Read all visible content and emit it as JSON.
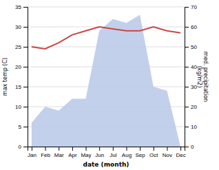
{
  "chart_data": {
    "type": "line",
    "categories": [
      "Jan",
      "Feb",
      "Mar",
      "Apr",
      "May",
      "Jun",
      "Jul",
      "Aug",
      "Sep",
      "Oct",
      "Nov",
      "Dec"
    ],
    "series": [
      {
        "type": "area",
        "color": "#b8c8e8",
        "values": [
          6,
          10,
          9,
          12,
          12,
          29,
          32,
          31,
          33,
          15,
          14,
          0
        ]
      },
      {
        "type": "line",
        "color": "#cc4444",
        "values": [
          25,
          24.5,
          26,
          28,
          29,
          30,
          29.5,
          29,
          29,
          30,
          29,
          28.5
        ]
      }
    ],
    "xlabel": "date (month)",
    "ylabel": "max temp (C)",
    "y2label": "med. precipitation\n(kg/m2)",
    "ylim": [
      0,
      35
    ],
    "yticks": [
      0,
      5,
      10,
      15,
      20,
      25,
      30,
      35
    ],
    "y2lim": [
      0,
      70
    ],
    "y2ticks": [
      0,
      10,
      20,
      30,
      40,
      50,
      60,
      70
    ],
    "grid": true
  }
}
